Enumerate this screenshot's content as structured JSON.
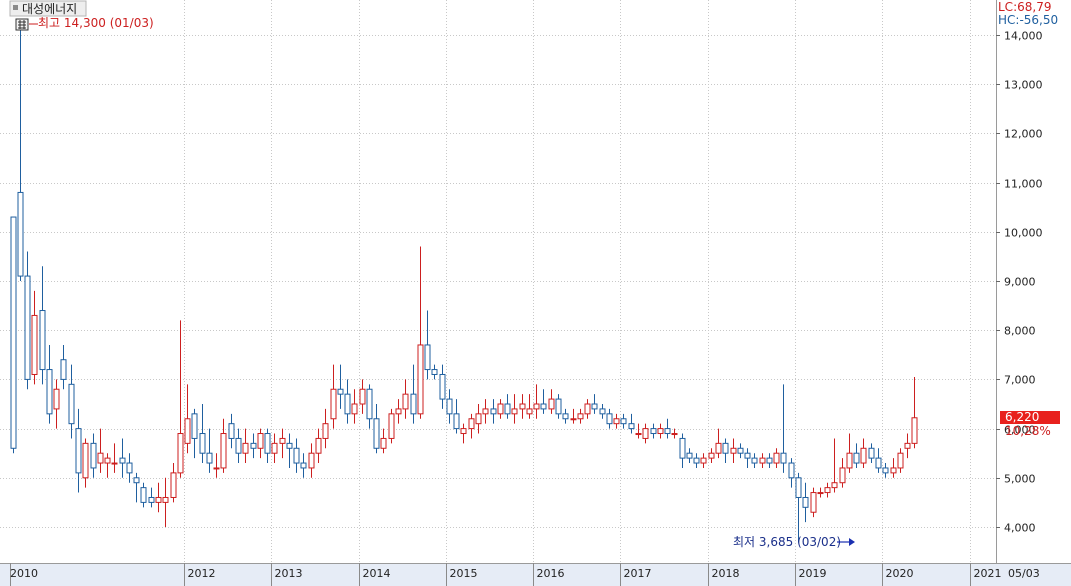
{
  "stock_name": "대성에너지",
  "stats": {
    "lc": "LC:68,79",
    "hc": "HC:-56,50"
  },
  "annotations": {
    "high": "최고 14,300 (01/03)",
    "low": "최저 3,685 (03/02)"
  },
  "current": {
    "price": "6,220",
    "change": "10,28%"
  },
  "colors": {
    "up": "#cc1f1f",
    "down": "#1f5f9f",
    "grid": "#c8c8c8",
    "axis_bg": "#e6ecf6",
    "price_box": "#e8211d"
  },
  "chart_data": {
    "type": "candlestick",
    "title": "대성에너지",
    "ylim": [
      3500,
      14500
    ],
    "yticks": [
      4000,
      5000,
      6000,
      7000,
      8000,
      9000,
      10000,
      11000,
      12000,
      13000,
      14000
    ],
    "ytick_labels": [
      "4,000",
      "5,000",
      "6,000",
      "7,000",
      "8,000",
      "9,000",
      "10,000",
      "11,000",
      "12,000",
      "13,000",
      "14,000"
    ],
    "xtick_labels": [
      "2010",
      "2012",
      "2013",
      "2014",
      "2015",
      "2016",
      "2017",
      "2018",
      "2019",
      "2020",
      "2021",
      "05/03"
    ],
    "xtick_months": [
      0,
      24,
      36,
      48,
      60,
      72,
      84,
      96,
      108,
      120,
      132,
      136
    ],
    "months_start": "2010-01",
    "candles": [
      [
        10300,
        10300,
        5500,
        5600
      ],
      [
        10800,
        14300,
        9000,
        9100
      ],
      [
        9100,
        9600,
        6800,
        7000
      ],
      [
        7100,
        8800,
        6900,
        8300
      ],
      [
        8400,
        9300,
        6900,
        7200
      ],
      [
        7200,
        7700,
        6100,
        6300
      ],
      [
        6400,
        7000,
        6000,
        6800
      ],
      [
        7400,
        7700,
        6800,
        7000
      ],
      [
        6900,
        7300,
        5800,
        6100
      ],
      [
        6000,
        6400,
        4700,
        5100
      ],
      [
        5000,
        5800,
        4800,
        5700
      ],
      [
        5700,
        5900,
        5000,
        5200
      ],
      [
        5300,
        6000,
        5100,
        5500
      ],
      [
        5300,
        5500,
        5000,
        5400
      ],
      [
        5300,
        5700,
        5100,
        5300
      ],
      [
        5400,
        5800,
        5000,
        5300
      ],
      [
        5300,
        5500,
        4900,
        5100
      ],
      [
        5000,
        5100,
        4500,
        4900
      ],
      [
        4800,
        4900,
        4400,
        4500
      ],
      [
        4600,
        4800,
        4400,
        4500
      ],
      [
        4500,
        4900,
        4300,
        4600
      ],
      [
        4500,
        5000,
        4000,
        4600
      ],
      [
        4600,
        5300,
        4500,
        5100
      ],
      [
        5100,
        8200,
        5000,
        5900
      ],
      [
        5700,
        6900,
        5500,
        6200
      ],
      [
        6300,
        6400,
        5400,
        5800
      ],
      [
        5900,
        6500,
        5300,
        5500
      ],
      [
        5500,
        6000,
        5100,
        5300
      ],
      [
        5200,
        5500,
        5000,
        5200
      ],
      [
        5200,
        6200,
        5100,
        5900
      ],
      [
        6100,
        6300,
        5600,
        5800
      ],
      [
        5800,
        6000,
        5300,
        5500
      ],
      [
        5500,
        6000,
        5300,
        5700
      ],
      [
        5700,
        5900,
        5400,
        5600
      ],
      [
        5600,
        6000,
        5400,
        5900
      ],
      [
        5900,
        6000,
        5300,
        5500
      ],
      [
        5500,
        5900,
        5300,
        5700
      ],
      [
        5700,
        6000,
        5400,
        5800
      ],
      [
        5700,
        5900,
        5200,
        5600
      ],
      [
        5600,
        5800,
        5100,
        5300
      ],
      [
        5300,
        5500,
        5000,
        5200
      ],
      [
        5200,
        5700,
        5000,
        5500
      ],
      [
        5500,
        6000,
        5300,
        5800
      ],
      [
        5800,
        6400,
        5600,
        6100
      ],
      [
        6200,
        7300,
        6000,
        6800
      ],
      [
        6800,
        7300,
        6400,
        6700
      ],
      [
        6700,
        7000,
        6100,
        6300
      ],
      [
        6300,
        6800,
        6100,
        6500
      ],
      [
        6500,
        7000,
        6300,
        6800
      ],
      [
        6800,
        6900,
        6000,
        6200
      ],
      [
        6200,
        6500,
        5500,
        5600
      ],
      [
        5600,
        6000,
        5500,
        5800
      ],
      [
        5800,
        6400,
        5700,
        6300
      ],
      [
        6300,
        6600,
        6100,
        6400
      ],
      [
        6400,
        7000,
        6200,
        6700
      ],
      [
        6700,
        7300,
        6100,
        6300
      ],
      [
        6300,
        9700,
        6200,
        7700
      ],
      [
        7700,
        8400,
        7000,
        7200
      ],
      [
        7200,
        7300,
        7000,
        7100
      ],
      [
        7100,
        7300,
        6400,
        6600
      ],
      [
        6600,
        6800,
        6100,
        6300
      ],
      [
        6300,
        6600,
        5900,
        6000
      ],
      [
        5900,
        6100,
        5700,
        6000
      ],
      [
        6000,
        6300,
        5800,
        6200
      ],
      [
        6100,
        6500,
        5900,
        6300
      ],
      [
        6300,
        6600,
        6100,
        6400
      ],
      [
        6400,
        6600,
        6100,
        6300
      ],
      [
        6300,
        6600,
        6200,
        6500
      ],
      [
        6500,
        6700,
        6200,
        6300
      ],
      [
        6300,
        6700,
        6100,
        6400
      ],
      [
        6400,
        6700,
        6200,
        6500
      ],
      [
        6300,
        6700,
        6200,
        6400
      ],
      [
        6400,
        6900,
        6200,
        6500
      ],
      [
        6500,
        6800,
        6300,
        6400
      ],
      [
        6400,
        6800,
        6300,
        6600
      ],
      [
        6600,
        6700,
        6200,
        6300
      ],
      [
        6300,
        6400,
        6100,
        6200
      ],
      [
        6200,
        6400,
        6100,
        6200
      ],
      [
        6200,
        6400,
        6100,
        6300
      ],
      [
        6300,
        6600,
        6200,
        6500
      ],
      [
        6500,
        6700,
        6300,
        6400
      ],
      [
        6400,
        6500,
        6200,
        6300
      ],
      [
        6300,
        6400,
        6000,
        6100
      ],
      [
        6100,
        6300,
        6000,
        6200
      ],
      [
        6200,
        6300,
        6000,
        6100
      ],
      [
        6100,
        6300,
        5900,
        6000
      ],
      [
        5900,
        6100,
        5800,
        5900
      ],
      [
        5800,
        6100,
        5700,
        6000
      ],
      [
        6000,
        6100,
        5800,
        5900
      ],
      [
        5900,
        6100,
        5800,
        6000
      ],
      [
        6000,
        6200,
        5800,
        5900
      ],
      [
        5900,
        6000,
        5800,
        5900
      ],
      [
        5800,
        5900,
        5200,
        5400
      ],
      [
        5500,
        5600,
        5300,
        5400
      ],
      [
        5400,
        5500,
        5200,
        5300
      ],
      [
        5300,
        5500,
        5200,
        5400
      ],
      [
        5400,
        5600,
        5300,
        5500
      ],
      [
        5500,
        6000,
        5400,
        5700
      ],
      [
        5700,
        5800,
        5300,
        5500
      ],
      [
        5500,
        5800,
        5300,
        5600
      ],
      [
        5600,
        5700,
        5400,
        5500
      ],
      [
        5500,
        5600,
        5200,
        5400
      ],
      [
        5400,
        5500,
        5200,
        5300
      ],
      [
        5300,
        5500,
        5200,
        5400
      ],
      [
        5400,
        5500,
        5200,
        5300
      ],
      [
        5300,
        5600,
        5200,
        5500
      ],
      [
        5500,
        6900,
        5100,
        5300
      ],
      [
        5300,
        5400,
        4800,
        5000
      ],
      [
        5000,
        5100,
        3685,
        4600
      ],
      [
        4600,
        4900,
        4100,
        4400
      ],
      [
        4300,
        4800,
        4200,
        4700
      ],
      [
        4700,
        4800,
        4600,
        4700
      ],
      [
        4700,
        4900,
        4600,
        4800
      ],
      [
        4800,
        5800,
        4700,
        4900
      ],
      [
        4900,
        5400,
        4800,
        5200
      ],
      [
        5200,
        5900,
        5100,
        5500
      ],
      [
        5500,
        5700,
        5200,
        5300
      ],
      [
        5300,
        5800,
        5200,
        5600
      ],
      [
        5600,
        5700,
        5300,
        5400
      ],
      [
        5400,
        5600,
        5100,
        5200
      ],
      [
        5200,
        5300,
        5000,
        5100
      ],
      [
        5100,
        5400,
        5000,
        5200
      ],
      [
        5200,
        5600,
        5100,
        5500
      ],
      [
        5600,
        5900,
        5400,
        5700
      ],
      [
        5700,
        7050,
        5600,
        6220
      ]
    ]
  }
}
